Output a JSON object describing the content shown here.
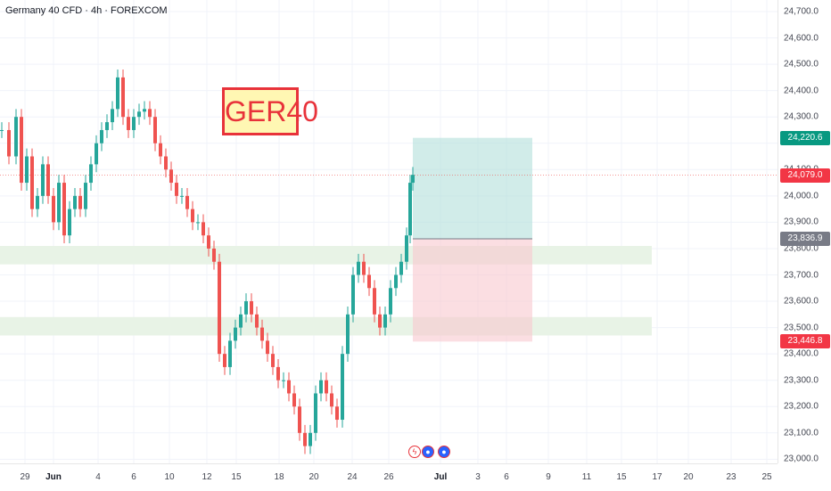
{
  "header": {
    "title": "Germany 40 CFD · 4h · FOREXCOM"
  },
  "annotation": {
    "label": "GER40"
  },
  "price_axis": {
    "ticks": [
      "24,700.0",
      "24,600.0",
      "24,500.0",
      "24,400.0",
      "24,300.0",
      "24,100.0",
      "24,000.0",
      "23,900.0",
      "23,800.0",
      "23,700.0",
      "23,600.0",
      "23,500.0",
      "23,400.0",
      "23,300.0",
      "23,200.0",
      "23,100.0",
      "23,000.0"
    ],
    "badges": {
      "target": "24,220.6",
      "current": "24,079.0",
      "entry": "23,836.9",
      "stop": "23,446.8"
    }
  },
  "time_axis": {
    "ticks": [
      "29",
      "Jun",
      "4",
      "6",
      "10",
      "12",
      "15",
      "18",
      "20",
      "24",
      "26",
      "Jul",
      "3",
      "6",
      "9",
      "11",
      "15",
      "17",
      "20",
      "23",
      "25"
    ],
    "month_labels": [
      "Jun",
      "Jul"
    ]
  },
  "events": [
    {
      "icon": "lightning-icon",
      "glyph": "ϟ"
    },
    {
      "icon": "flag-icon",
      "glyph": "●"
    },
    {
      "icon": "flag-icon",
      "glyph": "●"
    }
  ],
  "position_tool": {
    "entry": 23836.9,
    "target": 24220.6,
    "stop": 23446.8,
    "profit_color": "#b2dfdb",
    "loss_color": "#f8c8ce"
  },
  "zones": [
    {
      "from": 23740,
      "to": 23810,
      "color": "#e8f3e6"
    },
    {
      "from": 23470,
      "to": 23540,
      "color": "#e8f3e6"
    }
  ],
  "colors": {
    "up": "#26a69a",
    "down": "#ef5350",
    "accent": "#2962ff"
  }
}
